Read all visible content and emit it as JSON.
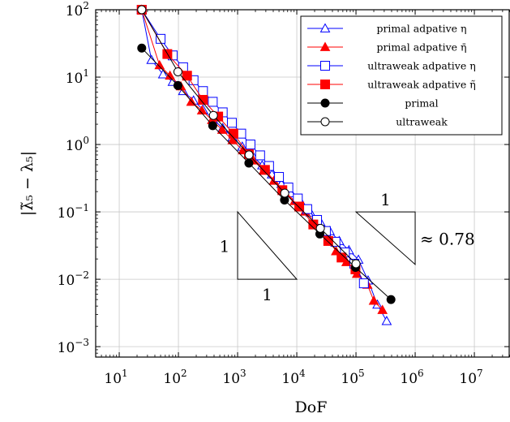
{
  "chart_data": {
    "type": "line",
    "x_scale": "log",
    "y_scale": "log",
    "xlim": [
      4.0,
      40000000
    ],
    "ylim": [
      0.0007,
      100
    ],
    "xlabel": "DoF",
    "ylabel": "|λ̃₅ − λ₅|",
    "grid": true,
    "legend_position": "top-right",
    "x_ticks": [
      {
        "base": "10",
        "exp": "1",
        "value": 10
      },
      {
        "base": "10",
        "exp": "2",
        "value": 100
      },
      {
        "base": "10",
        "exp": "3",
        "value": 1000
      },
      {
        "base": "10",
        "exp": "4",
        "value": 10000
      },
      {
        "base": "10",
        "exp": "5",
        "value": 100000
      },
      {
        "base": "10",
        "exp": "6",
        "value": 1000000
      },
      {
        "base": "10",
        "exp": "7",
        "value": 10000000
      }
    ],
    "y_ticks": [
      {
        "base": "10",
        "exp": "2",
        "value": 100
      },
      {
        "base": "10",
        "exp": "1",
        "value": 10
      },
      {
        "base": "10",
        "exp": "0",
        "value": 1
      },
      {
        "base": "10",
        "exp": "−1",
        "value": 0.1
      },
      {
        "base": "10",
        "exp": "−2",
        "value": 0.01
      },
      {
        "base": "10",
        "exp": "−3",
        "value": 0.001
      }
    ],
    "series": [
      {
        "name": "primal adpative η",
        "color": "#0000ff",
        "marker": "triangle-open",
        "x": [
          24,
          35,
          55,
          80,
          120,
          180,
          260,
          380,
          560,
          820,
          1200,
          1800,
          2600,
          3800,
          5500,
          8000,
          12000,
          17000,
          25000,
          36000,
          52000,
          76000,
          110000,
          160000,
          230000,
          330000
        ],
        "y": [
          100,
          18,
          11,
          8.5,
          6.2,
          4.5,
          3.3,
          2.4,
          1.75,
          1.28,
          0.93,
          0.68,
          0.49,
          0.36,
          0.26,
          0.19,
          0.135,
          0.098,
          0.071,
          0.052,
          0.037,
          0.027,
          0.0195,
          0.0096,
          0.0042,
          0.0024
        ]
      },
      {
        "name": "primal adpative η̄",
        "color": "#ff0000",
        "marker": "triangle-filled",
        "x": [
          24,
          48,
          72,
          110,
          165,
          250,
          370,
          550,
          820,
          1230,
          1850,
          2750,
          4100,
          6100,
          9200,
          13800,
          20600,
          31000,
          46000,
          69000,
          104000,
          156000,
          200000,
          280000
        ],
        "y": [
          100,
          15,
          10.5,
          7.3,
          4.3,
          3.2,
          2.3,
          1.65,
          1.16,
          0.82,
          0.58,
          0.41,
          0.29,
          0.205,
          0.145,
          0.101,
          0.071,
          0.05,
          0.026,
          0.018,
          0.012,
          0.0083,
          0.0048,
          0.0035
        ]
      },
      {
        "name": "ultraweak adpative η",
        "color": "#0000ff",
        "marker": "square-open",
        "x": [
          24,
          50,
          80,
          120,
          180,
          260,
          380,
          560,
          800,
          1150,
          1650,
          2400,
          3400,
          5000,
          7200,
          10400,
          15000,
          22000,
          31000,
          45000,
          65000,
          94000,
          136000
        ],
        "y": [
          100,
          37,
          21,
          14,
          9,
          6.2,
          4.3,
          3,
          2.1,
          1.45,
          1,
          0.69,
          0.48,
          0.33,
          0.23,
          0.158,
          0.11,
          0.076,
          0.052,
          0.036,
          0.025,
          0.017,
          0.0087
        ]
      },
      {
        "name": "ultraweak adpative η̃",
        "color": "#ff0000",
        "marker": "square-filled",
        "x": [
          24,
          65,
          140,
          260,
          470,
          850,
          1550,
          2900,
          5700,
          11000,
          19000,
          34000,
          57000,
          98000
        ],
        "y": [
          100,
          22,
          10.5,
          4.6,
          2.6,
          1.45,
          0.72,
          0.42,
          0.21,
          0.12,
          0.065,
          0.037,
          0.021,
          0.014
        ]
      },
      {
        "name": "primal",
        "color": "#000000",
        "marker": "circle-filled",
        "x": [
          24,
          98,
          380,
          1550,
          6200,
          24500,
          98000,
          390000
        ],
        "y": [
          27,
          7.5,
          1.9,
          0.53,
          0.15,
          0.047,
          0.015,
          0.005
        ]
      },
      {
        "name": "ultraweak",
        "color": "#000000",
        "marker": "circle-open",
        "x": [
          24,
          98,
          390,
          1560,
          6250,
          25000,
          100000
        ],
        "y": [
          100,
          12,
          2.7,
          0.7,
          0.19,
          0.057,
          0.017
        ]
      }
    ],
    "slope_triangles": [
      {
        "x_left": 1000,
        "x_right": 10000,
        "y_bottom": 0.01,
        "y_top": 0.1,
        "orientation": "lower",
        "label_h": "1",
        "label_v": "1"
      },
      {
        "x_left": 100000,
        "x_right": 1000000,
        "y_top": 0.1,
        "y_bottom": 0.0166,
        "orientation": "upper",
        "label_h": "1",
        "label_v": "≈ 0.78"
      }
    ]
  }
}
